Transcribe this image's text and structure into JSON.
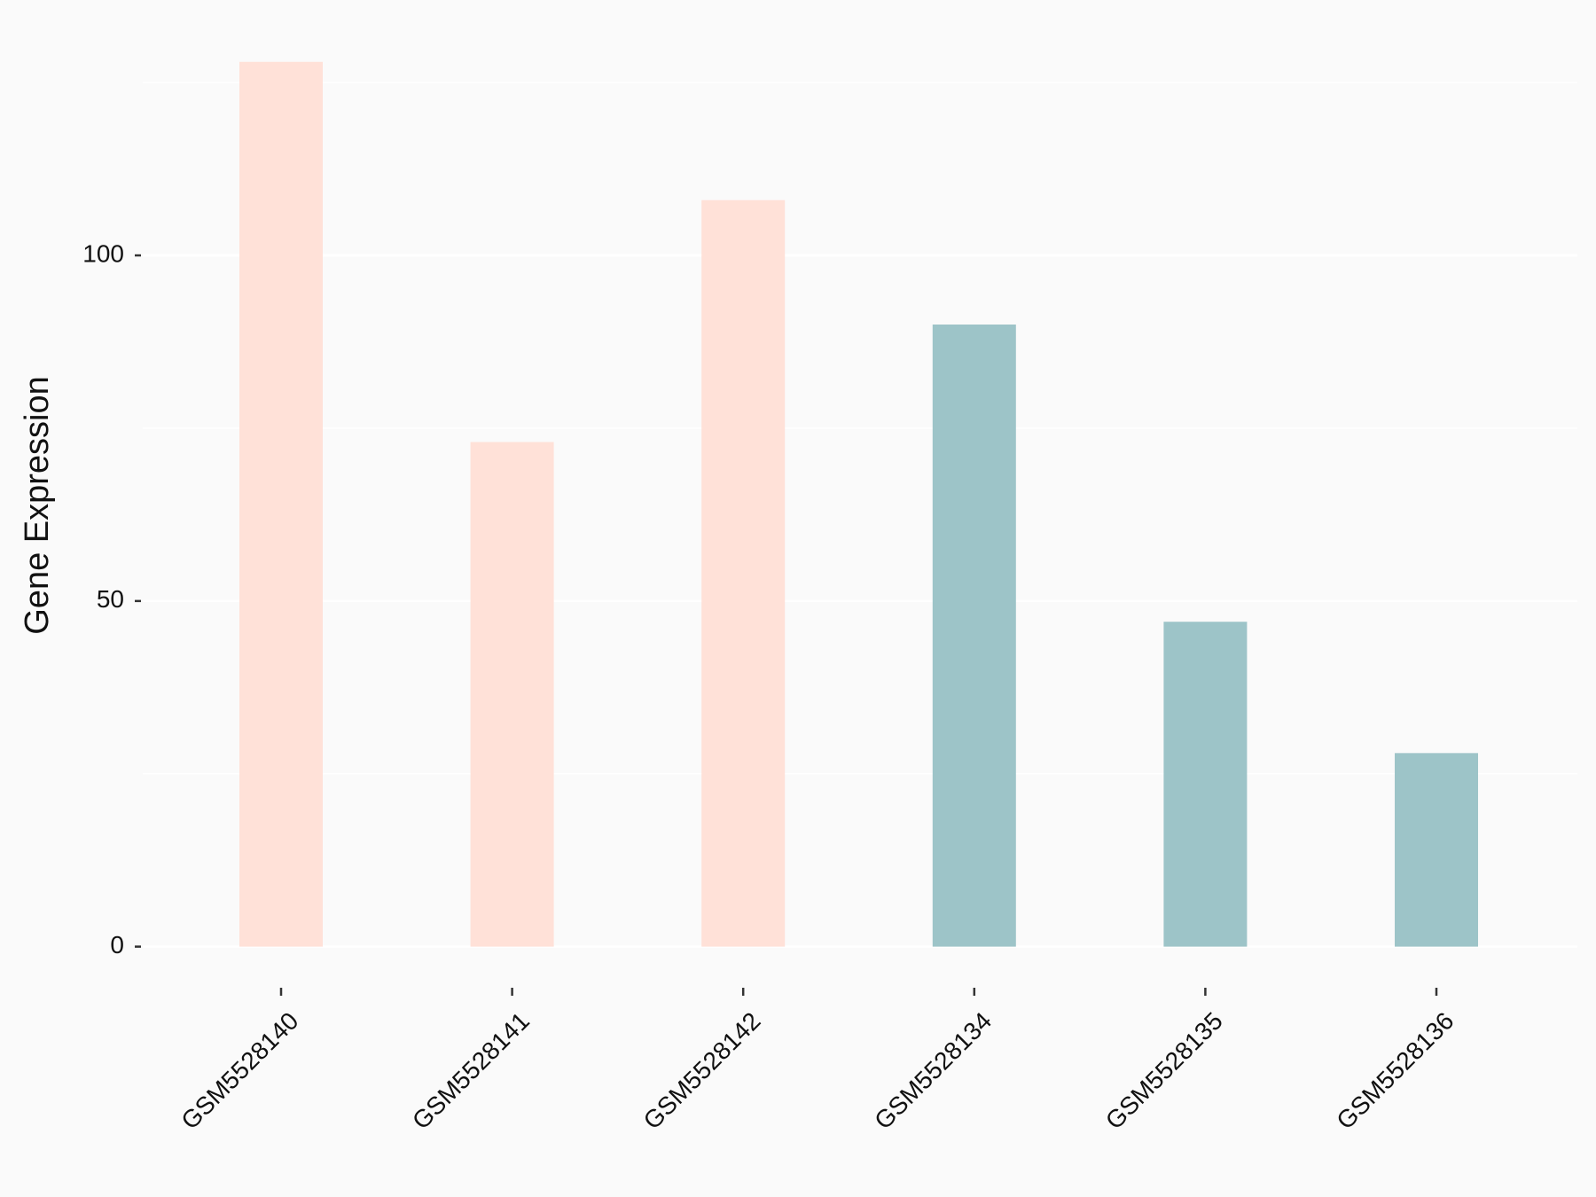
{
  "chart_data": {
    "type": "bar",
    "y_label": "Gene Expression",
    "categories": [
      "GSM5528140",
      "GSM5528141",
      "GSM5528142",
      "GSM5528134",
      "GSM5528135",
      "GSM5528136"
    ],
    "values": [
      128,
      73,
      108,
      90,
      47,
      28
    ],
    "colors": [
      "#ffe1d8",
      "#ffe1d8",
      "#ffe1d8",
      "#9dc4c8",
      "#9dc4c8",
      "#9dc4c8"
    ],
    "ylim": [
      -6,
      134
    ],
    "yticks": [
      0,
      50,
      100
    ],
    "minor_yticks": [
      25,
      75,
      125
    ],
    "grid": true
  }
}
